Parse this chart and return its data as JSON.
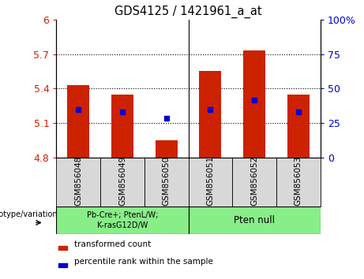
{
  "title": "GDS4125 / 1421961_a_at",
  "samples": [
    "GSM856048",
    "GSM856049",
    "GSM856050",
    "GSM856051",
    "GSM856052",
    "GSM856053"
  ],
  "bar_values": [
    5.43,
    5.35,
    4.95,
    5.55,
    5.73,
    5.35
  ],
  "blue_values": [
    5.22,
    5.2,
    5.14,
    5.22,
    5.3,
    5.2
  ],
  "ymin": 4.8,
  "ymax": 6.0,
  "yticks": [
    4.8,
    5.1,
    5.4,
    5.7,
    6.0
  ],
  "ytick_labels": [
    "4.8",
    "5.1",
    "5.4",
    "5.7",
    "6"
  ],
  "y2min": 0,
  "y2max": 100,
  "y2ticks": [
    0,
    25,
    50,
    75,
    100
  ],
  "y2tick_labels": [
    "0",
    "25",
    "50",
    "75",
    "100%"
  ],
  "bar_color": "#cc2200",
  "blue_color": "#0000cc",
  "group1_label": "Pb-Cre+; PtenL/W;\nK-rasG12D/W",
  "group2_label": "Pten null",
  "group_color": "#88ee88",
  "sample_bg": "#d8d8d8",
  "group_label_text": "genotype/variation",
  "legend_red": "transformed count",
  "legend_blue": "percentile rank within the sample",
  "tick_color_left": "#cc2200",
  "tick_color_right": "#0000cc"
}
